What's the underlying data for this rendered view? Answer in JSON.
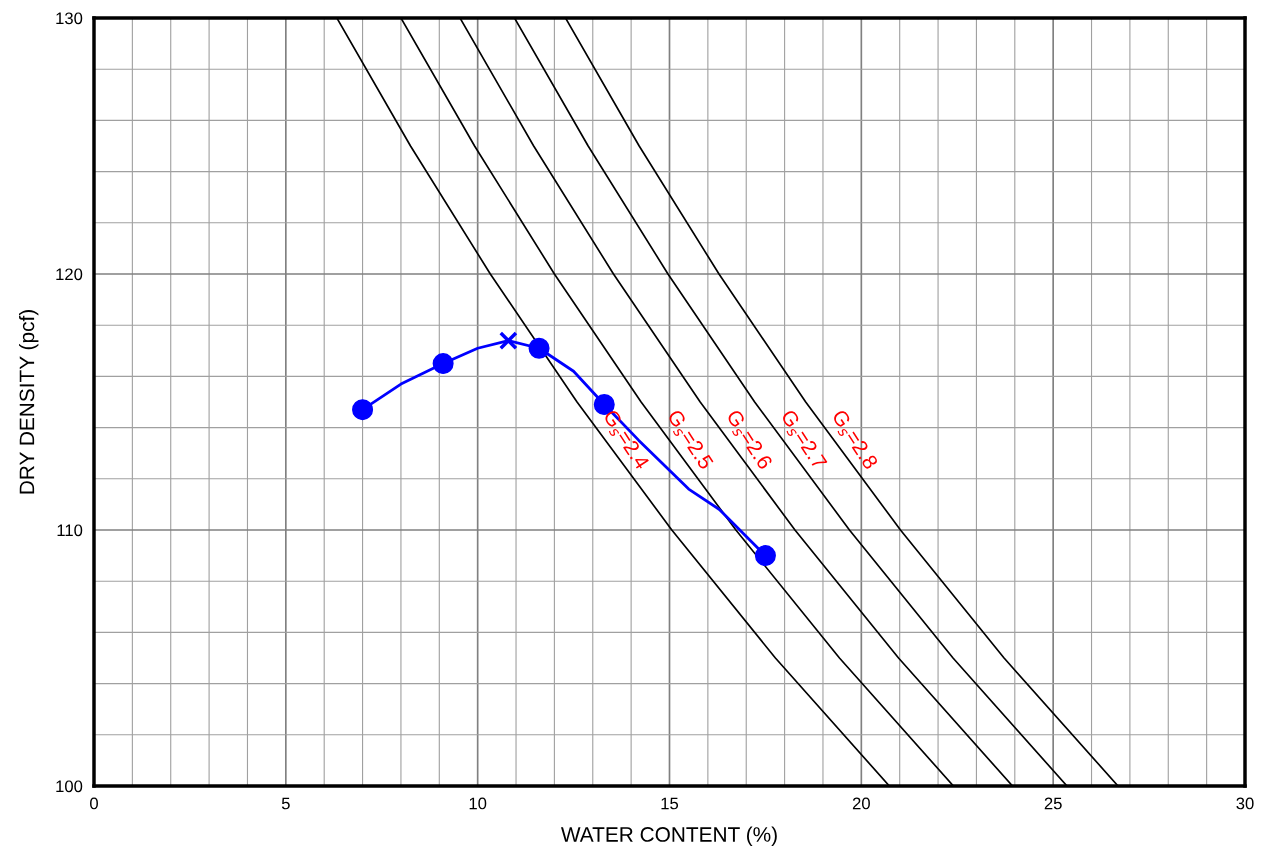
{
  "chart_data": {
    "type": "line",
    "xlabel": "WATER CONTENT (%)",
    "ylabel": "DRY DENSITY (pcf)",
    "xlim": [
      0,
      30
    ],
    "ylim": [
      100,
      130
    ],
    "xticks": [
      0,
      {
        "value": 1,
        "label": null
      },
      {
        "value": 2,
        "label": null
      },
      {
        "value": 3,
        "label": null
      },
      {
        "value": 4,
        "label": null
      },
      5,
      {
        "value": 6,
        "label": null
      },
      {
        "value": 7,
        "label": null
      },
      {
        "value": 8,
        "label": null
      },
      {
        "value": 9,
        "label": null
      },
      10,
      {
        "value": 11,
        "label": null
      },
      {
        "value": 12,
        "label": null
      },
      {
        "value": 13,
        "label": null
      },
      {
        "value": 14,
        "label": null
      },
      15,
      {
        "value": 16,
        "label": null
      },
      {
        "value": 17,
        "label": null
      },
      {
        "value": 18,
        "label": null
      },
      {
        "value": 19,
        "label": null
      },
      20,
      {
        "value": 21,
        "label": null
      },
      {
        "value": 22,
        "label": null
      },
      {
        "value": 23,
        "label": null
      },
      {
        "value": 24,
        "label": null
      },
      25,
      {
        "value": 26,
        "label": null
      },
      {
        "value": 27,
        "label": null
      },
      {
        "value": 28,
        "label": null
      },
      {
        "value": 29,
        "label": null
      },
      30
    ],
    "yticks": [
      100,
      {
        "value": 102,
        "label": null
      },
      {
        "value": 104,
        "label": null
      },
      {
        "value": 106,
        "label": null
      },
      {
        "value": 108,
        "label": null
      },
      110,
      {
        "value": 112,
        "label": null
      },
      {
        "value": 114,
        "label": null
      },
      {
        "value": 116,
        "label": null
      },
      {
        "value": 118,
        "label": null
      },
      120,
      {
        "value": 122,
        "label": null
      },
      {
        "value": 124,
        "label": null
      },
      {
        "value": 126,
        "label": null
      },
      {
        "value": 128,
        "label": null
      },
      130
    ],
    "grid": true,
    "series": [
      {
        "color": "#000000",
        "marker": "none",
        "x": [
          6.33,
          8.25,
          10.33,
          12.59,
          15.06,
          17.76,
          20.73
        ],
        "values": [
          130,
          125,
          120,
          115,
          110,
          105,
          100
        ]
      },
      {
        "color": "#000000",
        "marker": "none",
        "x": [
          8.0,
          9.92,
          12.0,
          14.26,
          16.73,
          19.43,
          22.4
        ],
        "values": [
          130,
          125,
          120,
          115,
          110,
          105,
          100
        ]
      },
      {
        "color": "#000000",
        "marker": "none",
        "x": [
          9.54,
          11.46,
          13.54,
          15.8,
          18.27,
          20.97,
          23.94
        ],
        "values": [
          130,
          125,
          120,
          115,
          110,
          105,
          100
        ]
      },
      {
        "color": "#000000",
        "marker": "none",
        "x": [
          10.96,
          12.88,
          14.96,
          17.22,
          19.69,
          22.39,
          25.36
        ],
        "values": [
          130,
          125,
          120,
          115,
          110,
          105,
          100
        ]
      },
      {
        "color": "#000000",
        "marker": "none",
        "x": [
          12.29,
          14.21,
          16.29,
          18.55,
          21.02,
          23.72,
          26.69
        ],
        "values": [
          130,
          125,
          120,
          115,
          110,
          105,
          100
        ]
      },
      {
        "color": "#0000ff",
        "marker": "none",
        "x": [
          7.0,
          8.0,
          9.1,
          10.0,
          10.8,
          11.6,
          12.5,
          13.3,
          14.2,
          15.5,
          16.3,
          17.5
        ],
        "values": [
          114.7,
          115.7,
          116.5,
          117.1,
          117.4,
          117.1,
          116.2,
          114.9,
          113.5,
          111.6,
          110.8,
          109.0
        ]
      },
      {
        "type": "scatter",
        "color": "#0000ff",
        "marker": "circle",
        "x": [
          7.0,
          9.1,
          11.6,
          13.3,
          17.5
        ],
        "values": [
          114.7,
          116.5,
          117.1,
          114.9,
          109.0
        ]
      },
      {
        "type": "scatter",
        "color": "#0000ff",
        "marker": "cross",
        "x": [
          10.8
        ],
        "values": [
          117.4
        ]
      }
    ],
    "annotations": [
      "G$_{s}$=2.4",
      "G$_{s}$=2.5",
      "G$_{s}$=2.6",
      "G$_{s}$=2.7",
      "G$_{s}$=2.8"
    ]
  }
}
